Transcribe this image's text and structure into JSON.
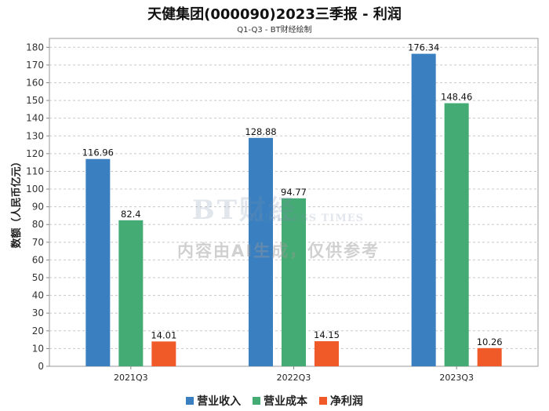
{
  "header": {
    "title": "天健集团(000090)2023三季报 - 利润",
    "subtitle": "Q1-Q3 - BT财经绘制"
  },
  "watermark": {
    "logo": "BT财经",
    "logo_sub": "BUSINESS TIMES",
    "notice": "内容由AI生成，仅供参考"
  },
  "chart_data": {
    "type": "bar",
    "title": "天健集团(000090)2023三季报 - 利润",
    "subtitle": "Q1-Q3 - BT财经绘制",
    "xlabel": "",
    "ylabel": "数额（人民币亿元）",
    "ylim": [
      0,
      185
    ],
    "yticks": [
      0,
      10,
      20,
      30,
      40,
      50,
      60,
      70,
      80,
      90,
      100,
      110,
      120,
      130,
      140,
      150,
      160,
      170,
      180
    ],
    "grid": true,
    "legend_position": "bottom",
    "categories": [
      "2021Q3",
      "2022Q3",
      "2023Q3"
    ],
    "series": [
      {
        "name": "营业收入",
        "color": "#3a80c1",
        "values": [
          116.96,
          128.88,
          176.34
        ]
      },
      {
        "name": "营业成本",
        "color": "#45ab74",
        "values": [
          82.4,
          94.77,
          148.46
        ]
      },
      {
        "name": "净利润",
        "color": "#f05a28",
        "values": [
          14.01,
          14.15,
          10.26
        ]
      }
    ]
  }
}
